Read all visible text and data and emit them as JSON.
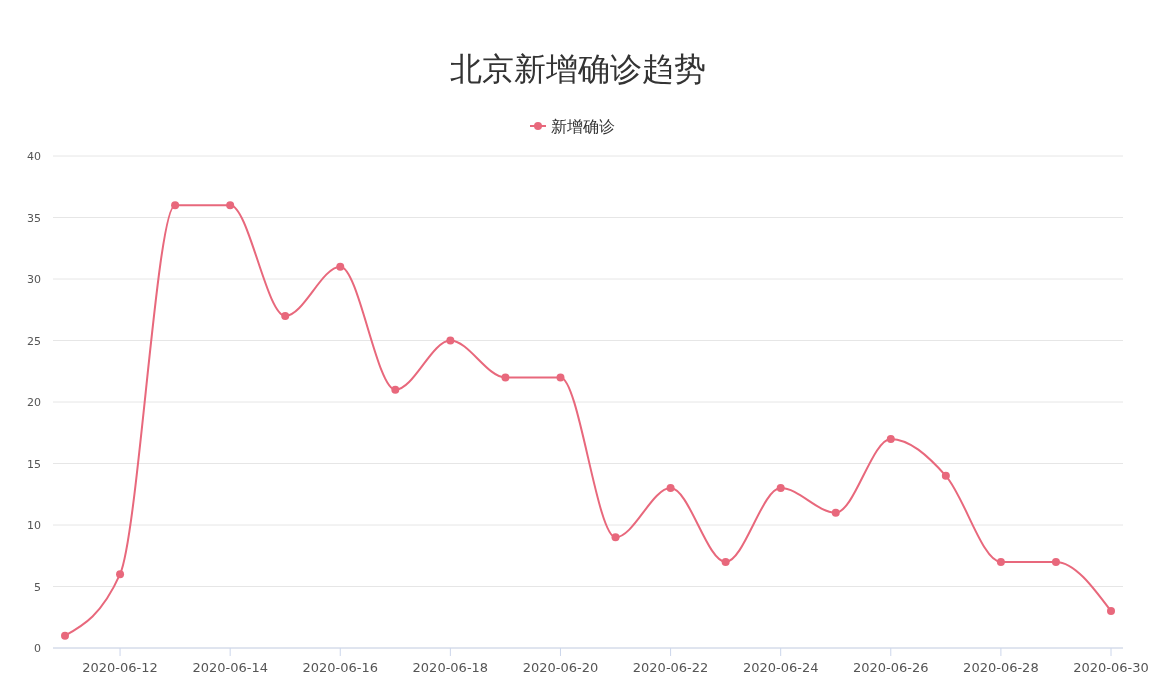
{
  "chart_data": {
    "type": "line",
    "title": "北京新增确诊趋势",
    "categories": [
      null,
      "2020-06-12",
      null,
      "2020-06-14",
      null,
      "2020-06-16",
      null,
      "2020-06-18",
      null,
      "2020-06-20",
      null,
      "2020-06-22",
      null,
      "2020-06-24",
      null,
      "2020-06-26",
      null,
      "2020-06-28",
      null,
      "2020-06-30"
    ],
    "series": [
      {
        "name": "新增确诊",
        "color": "#e8687c",
        "values": [
          1,
          6,
          36,
          36,
          27,
          31,
          21,
          25,
          22,
          22,
          9,
          13,
          7,
          13,
          11,
          17,
          14,
          7,
          7,
          3
        ]
      }
    ],
    "ylim": [
      0,
      40
    ],
    "yticks": [
      0,
      5,
      10,
      15,
      20,
      25,
      30,
      35,
      40
    ],
    "grid": "y",
    "legend": "top",
    "marker": "circle",
    "line_style": "solid"
  }
}
